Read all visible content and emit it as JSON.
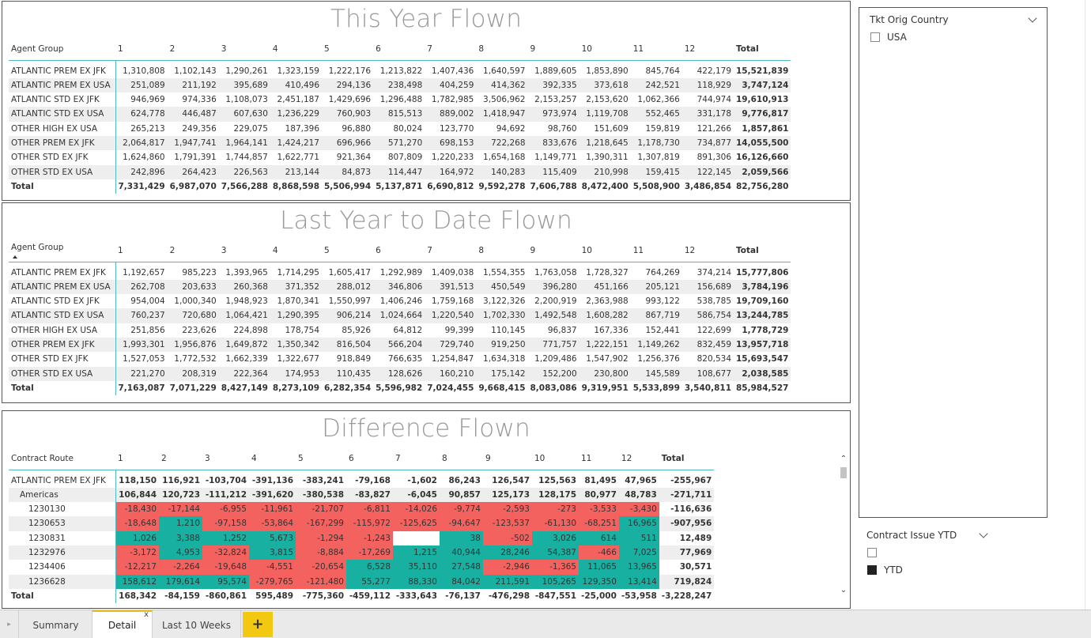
{
  "colors": {
    "positive": "#17b0a1",
    "negative": "#f4625f",
    "accent": "#f2c811",
    "header_rule": "#4fb8c2"
  },
  "this_year": {
    "title": "This Year Flown",
    "row_header": "Agent Group",
    "columns": [
      "1",
      "2",
      "3",
      "4",
      "5",
      "6",
      "7",
      "8",
      "9",
      "10",
      "11",
      "12",
      "Total"
    ],
    "rows": [
      {
        "label": "ATLANTIC PREM EX JFK",
        "values": [
          "1,310,808",
          "1,102,143",
          "1,290,261",
          "1,323,159",
          "1,222,176",
          "1,213,822",
          "1,407,436",
          "1,640,597",
          "1,889,605",
          "1,853,890",
          "845,764",
          "422,179",
          "15,521,839"
        ]
      },
      {
        "label": "ATLANTIC PREM EX USA",
        "values": [
          "251,089",
          "211,192",
          "395,689",
          "410,496",
          "294,136",
          "238,498",
          "404,259",
          "414,362",
          "392,335",
          "373,618",
          "242,521",
          "118,929",
          "3,747,124"
        ]
      },
      {
        "label": "ATLANTIC STD EX JFK",
        "values": [
          "946,969",
          "974,336",
          "1,108,073",
          "2,451,187",
          "1,429,696",
          "1,296,488",
          "1,782,985",
          "3,506,962",
          "2,153,257",
          "2,153,620",
          "1,062,366",
          "744,974",
          "19,610,913"
        ]
      },
      {
        "label": "ATLANTIC STD EX USA",
        "values": [
          "624,778",
          "446,487",
          "607,630",
          "1,236,229",
          "760,903",
          "815,513",
          "889,002",
          "1,418,947",
          "973,974",
          "1,119,708",
          "552,465",
          "331,178",
          "9,776,817"
        ]
      },
      {
        "label": "OTHER HIGH EX USA",
        "values": [
          "265,213",
          "249,356",
          "229,075",
          "187,396",
          "96,880",
          "80,024",
          "123,770",
          "94,692",
          "98,760",
          "151,609",
          "159,819",
          "121,266",
          "1,857,861"
        ]
      },
      {
        "label": "OTHER PREM EX JFK",
        "values": [
          "2,064,817",
          "1,947,741",
          "1,964,141",
          "1,424,217",
          "696,966",
          "571,270",
          "698,153",
          "722,268",
          "833,676",
          "1,218,645",
          "1,178,730",
          "734,877",
          "14,055,500"
        ]
      },
      {
        "label": "OTHER STD EX JFK",
        "values": [
          "1,624,860",
          "1,791,391",
          "1,744,857",
          "1,622,771",
          "921,364",
          "807,809",
          "1,220,233",
          "1,654,168",
          "1,149,771",
          "1,390,311",
          "1,307,819",
          "891,306",
          "16,126,660"
        ]
      },
      {
        "label": "OTHER STD EX USA",
        "values": [
          "242,896",
          "264,423",
          "226,563",
          "213,144",
          "84,873",
          "114,447",
          "164,972",
          "140,283",
          "115,409",
          "210,998",
          "159,415",
          "122,145",
          "2,059,566"
        ]
      }
    ],
    "total": {
      "label": "Total",
      "values": [
        "7,331,429",
        "6,987,070",
        "7,566,288",
        "8,868,598",
        "5,506,994",
        "5,137,871",
        "6,690,812",
        "9,592,278",
        "7,606,788",
        "8,472,400",
        "5,508,900",
        "3,486,854",
        "82,756,280"
      ]
    }
  },
  "last_year": {
    "title": "Last Year to Date Flown",
    "row_header": "Agent Group",
    "columns": [
      "1",
      "2",
      "3",
      "4",
      "5",
      "6",
      "7",
      "8",
      "9",
      "10",
      "11",
      "12",
      "Total"
    ],
    "rows": [
      {
        "label": "ATLANTIC PREM EX JFK",
        "values": [
          "1,192,657",
          "985,223",
          "1,393,965",
          "1,714,295",
          "1,605,417",
          "1,292,989",
          "1,409,038",
          "1,554,355",
          "1,763,058",
          "1,728,327",
          "764,269",
          "374,214",
          "15,777,806"
        ]
      },
      {
        "label": "ATLANTIC PREM EX USA",
        "values": [
          "262,708",
          "203,633",
          "260,368",
          "371,352",
          "288,012",
          "346,806",
          "391,513",
          "450,549",
          "396,280",
          "451,166",
          "205,121",
          "156,689",
          "3,784,196"
        ]
      },
      {
        "label": "ATLANTIC STD EX JFK",
        "values": [
          "954,004",
          "1,000,340",
          "1,948,923",
          "1,870,341",
          "1,550,997",
          "1,406,246",
          "1,759,168",
          "3,122,326",
          "2,200,919",
          "2,363,988",
          "993,122",
          "538,785",
          "19,709,160"
        ]
      },
      {
        "label": "ATLANTIC STD EX USA",
        "values": [
          "760,237",
          "720,680",
          "1,064,421",
          "1,290,395",
          "906,214",
          "1,024,664",
          "1,220,540",
          "1,702,330",
          "1,492,548",
          "1,608,282",
          "867,719",
          "586,754",
          "13,244,785"
        ]
      },
      {
        "label": "OTHER HIGH EX USA",
        "values": [
          "251,856",
          "223,626",
          "224,898",
          "178,754",
          "85,926",
          "64,812",
          "99,399",
          "110,145",
          "96,837",
          "167,336",
          "152,441",
          "122,699",
          "1,778,729"
        ]
      },
      {
        "label": "OTHER PREM EX JFK",
        "values": [
          "1,993,301",
          "1,956,876",
          "1,649,872",
          "1,350,342",
          "816,504",
          "566,204",
          "729,740",
          "919,250",
          "771,757",
          "1,222,151",
          "1,149,262",
          "832,459",
          "13,957,718"
        ]
      },
      {
        "label": "OTHER STD EX JFK",
        "values": [
          "1,527,053",
          "1,772,532",
          "1,662,339",
          "1,322,677",
          "918,849",
          "766,635",
          "1,254,847",
          "1,634,318",
          "1,209,486",
          "1,547,902",
          "1,256,376",
          "820,534",
          "15,693,547"
        ]
      },
      {
        "label": "OTHER STD EX USA",
        "values": [
          "221,270",
          "208,319",
          "222,364",
          "174,953",
          "110,435",
          "128,626",
          "160,210",
          "175,142",
          "152,200",
          "230,800",
          "145,589",
          "108,677",
          "2,038,585"
        ]
      }
    ],
    "total": {
      "label": "Total",
      "values": [
        "7,163,087",
        "7,071,229",
        "8,427,149",
        "8,273,109",
        "6,282,354",
        "5,596,982",
        "7,024,455",
        "9,668,415",
        "8,083,086",
        "9,319,951",
        "5,533,899",
        "3,540,811",
        "85,984,527"
      ]
    }
  },
  "difference": {
    "title": "Difference Flown",
    "row_header": "Contract Route",
    "columns": [
      "1",
      "2",
      "3",
      "4",
      "5",
      "6",
      "7",
      "8",
      "9",
      "10",
      "11",
      "12",
      "Total"
    ],
    "rows": [
      {
        "label": "ATLANTIC PREM EX JFK",
        "level": 0,
        "bold": true,
        "values": [
          "118,150",
          "116,921",
          "-103,704",
          "-391,136",
          "-383,241",
          "-79,168",
          "-1,602",
          "86,243",
          "126,547",
          "125,563",
          "81,495",
          "47,965",
          "-255,967"
        ]
      },
      {
        "label": "Americas",
        "level": 1,
        "bold": true,
        "values": [
          "106,844",
          "120,723",
          "-111,212",
          "-391,620",
          "-380,538",
          "-83,827",
          "-6,045",
          "90,857",
          "125,173",
          "128,175",
          "80,977",
          "48,783",
          "-271,711"
        ]
      },
      {
        "label": "1230130",
        "level": 2,
        "colored": true,
        "values": [
          "-18,430",
          "-17,144",
          "-6,955",
          "-11,961",
          "-21,707",
          "-6,811",
          "-14,026",
          "-9,774",
          "-2,593",
          "-273",
          "-3,533",
          "-3,430",
          "-116,636"
        ]
      },
      {
        "label": "1230653",
        "level": 2,
        "colored": true,
        "values": [
          "-18,648",
          "1,210",
          "-97,158",
          "-53,864",
          "-167,299",
          "-115,972",
          "-125,625",
          "-94,647",
          "-123,537",
          "-61,130",
          "-68,251",
          "16,965",
          "-907,956"
        ]
      },
      {
        "label": "1230831",
        "level": 2,
        "colored": true,
        "values": [
          "1,026",
          "3,388",
          "1,252",
          "5,673",
          "-1,294",
          "-1,243",
          "",
          "38",
          "-502",
          "3,026",
          "614",
          "511",
          "12,489"
        ]
      },
      {
        "label": "1232976",
        "level": 2,
        "colored": true,
        "values": [
          "-3,172",
          "4,953",
          "-32,824",
          "3,815",
          "-8,884",
          "-17,269",
          "1,215",
          "40,944",
          "28,246",
          "54,387",
          "-466",
          "7,025",
          "77,969"
        ]
      },
      {
        "label": "1234406",
        "level": 2,
        "colored": true,
        "values": [
          "-12,217",
          "-2,264",
          "-19,648",
          "-4,551",
          "-20,654",
          "6,528",
          "35,110",
          "27,548",
          "-2,946",
          "-1,365",
          "11,065",
          "13,965",
          "30,571"
        ]
      },
      {
        "label": "1236628",
        "level": 2,
        "colored": true,
        "values": [
          "158,612",
          "179,614",
          "95,574",
          "-279,765",
          "-121,480",
          "55,277",
          "88,330",
          "84,042",
          "211,591",
          "105,265",
          "129,350",
          "13,414",
          "719,824"
        ]
      }
    ],
    "total": {
      "label": "Total",
      "values": [
        "168,342",
        "-84,159",
        "-860,861",
        "595,489",
        "-775,360",
        "-459,112",
        "-333,643",
        "-76,137",
        "-476,298",
        "-847,551",
        "-25,000",
        "-53,958",
        "-3,228,247"
      ]
    }
  },
  "slicer_country": {
    "title": "Tkt Orig Country",
    "options": [
      {
        "label": "USA",
        "checked": false
      }
    ]
  },
  "slicer_contract": {
    "title": "Contract Issue YTD",
    "options": [
      {
        "label": "",
        "checked": false
      },
      {
        "label": "YTD",
        "checked": true
      }
    ]
  },
  "tabs": [
    {
      "label": "Summary",
      "active": false
    },
    {
      "label": "Detail",
      "active": true
    },
    {
      "label": "Last 10 Weeks",
      "active": false
    }
  ],
  "add_tab_label": "+",
  "close_glyph": "x"
}
